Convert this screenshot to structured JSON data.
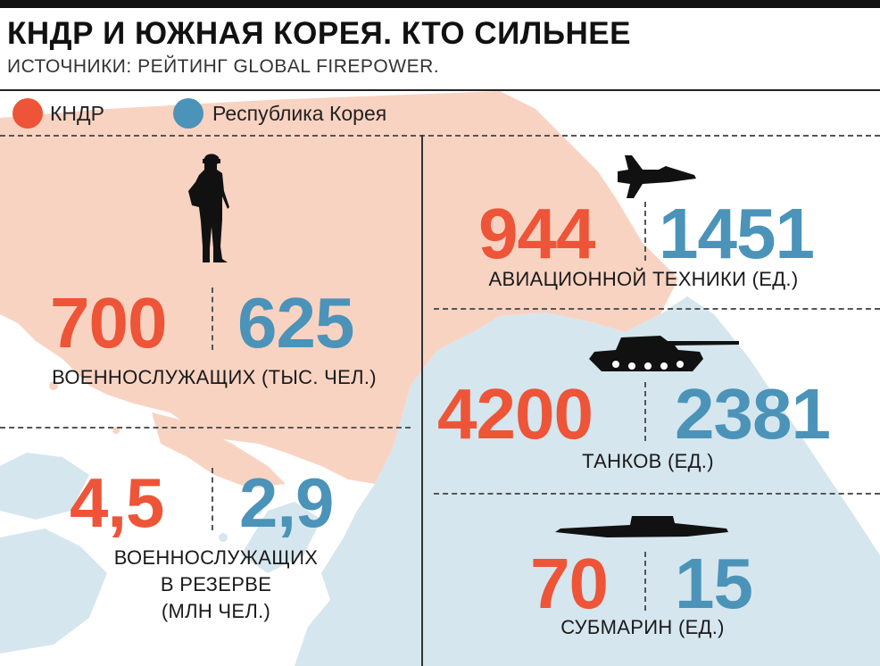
{
  "header": {
    "title": "КНДР И ЮЖНАЯ КОРЕЯ. КТО СИЛЬНЕЕ",
    "subtitle": "ИСТОЧНИКИ: РЕЙТИНГ GLOBAL FIREPOWER."
  },
  "legend": {
    "north": "КНДР",
    "south": "Республика Корея"
  },
  "colors": {
    "north": "#ee5437",
    "south": "#4b93b8",
    "north_land": "#f9d3c2",
    "south_land": "#d5e6ee",
    "sea": "#ffffff"
  },
  "stats": {
    "personnel": {
      "north": "700",
      "south": "625",
      "label": "ВОЕННОСЛУЖАЩИХ (ТЫС. ЧЕЛ.)",
      "icon": "soldier-icon"
    },
    "reserve": {
      "north": "4,5",
      "south": "2,9",
      "label_lines": [
        "ВОЕННОСЛУЖАЩИХ",
        "В РЕЗЕРВЕ",
        "(МЛН ЧЕЛ.)"
      ]
    },
    "aircraft": {
      "north": "944",
      "south": "1451",
      "label": "АВИАЦИОННОЙ ТЕХНИКИ (ЕД.)",
      "icon": "fighter-jet-icon"
    },
    "tanks": {
      "north": "4200",
      "south": "2381",
      "label": "ТАНКОВ (ЕД.)",
      "icon": "tank-icon"
    },
    "submarines": {
      "north": "70",
      "south": "15",
      "label": "СУБМАРИН (ЕД.)",
      "icon": "submarine-icon"
    }
  }
}
